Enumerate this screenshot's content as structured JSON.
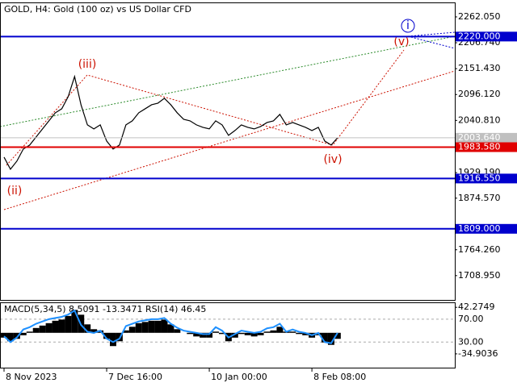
{
  "chart_data": [
    {
      "type": "line",
      "title": "GOLD, H4:  Gold (100 oz) vs US Dollar CFD",
      "x": [
        0,
        1,
        2,
        3,
        4,
        5,
        6,
        7,
        8,
        9,
        10,
        11,
        12,
        13,
        14,
        15,
        16,
        17,
        18,
        19,
        20,
        21,
        22,
        23,
        24,
        25,
        26,
        27,
        28,
        29,
        30,
        31,
        32,
        33,
        34,
        35,
        36,
        37,
        38,
        39,
        40,
        41,
        42,
        43,
        44,
        45,
        46,
        47,
        48,
        49,
        50,
        51,
        52
      ],
      "xlim": [
        -0.63,
        70.28
      ],
      "xticks": [
        {
          "value": 0,
          "label": "8 Nov 2023"
        },
        {
          "value": 16,
          "label": "7 Dec 16:00"
        },
        {
          "value": 32,
          "label": "10 Jan 00:00"
        },
        {
          "value": 48,
          "label": "8 Feb 08:00"
        }
      ],
      "series": [
        {
          "name": "GOLD",
          "color": "#000000",
          "values": [
            1962.2,
            1936.4,
            1953.7,
            1979.5,
            1988.1,
            2005.3,
            2022.6,
            2039.8,
            2057.0,
            2065.6,
            2091.5,
            2134.5,
            2074.2,
            2031.2,
            2022.6,
            2031.2,
            1996.7,
            1979.5,
            1988.1,
            2031.2,
            2039.8,
            2057.0,
            2065.6,
            2074.2,
            2077.7,
            2088.0,
            2074.2,
            2057.0,
            2043.2,
            2039.8,
            2031.2,
            2026.0,
            2022.6,
            2039.8,
            2031.2,
            2008.8,
            2019.1,
            2031.2,
            2026.0,
            2022.6,
            2027.7,
            2036.3,
            2039.8,
            2053.6,
            2031.2,
            2036.3,
            2031.2,
            2026.0,
            2019.1,
            2026.0,
            1996.7,
            1988.1,
            2003.6
          ]
        }
      ],
      "ylim": [
        1657,
        2293
      ],
      "yticks": [
        {
          "value": 2262.05,
          "label": "2262.050"
        },
        {
          "value": 2206.74,
          "label": "2206.740"
        },
        {
          "value": 2151.43,
          "label": "2151.430"
        },
        {
          "value": 2096.12,
          "label": "2096.120"
        },
        {
          "value": 2040.81,
          "label": "2040.810"
        },
        {
          "value": 1929.19,
          "label": "1929.190"
        },
        {
          "value": 1874.57,
          "label": "1874.570"
        },
        {
          "value": 1764.26,
          "label": "1764.260"
        },
        {
          "value": 1708.95,
          "label": "1708.950"
        }
      ],
      "levels": [
        {
          "value": 2220,
          "label": "2220.000",
          "color": "#0000cd"
        },
        {
          "value": 2003.64,
          "label": "2003.640",
          "color": "#c0c0c0"
        },
        {
          "value": 1983.58,
          "label": "1983.580",
          "color": "#e00000"
        },
        {
          "value": 1916.55,
          "label": "1916.550",
          "color": "#0000cd"
        },
        {
          "value": 1809,
          "label": "1809.000",
          "color": "#0000cd"
        }
      ],
      "annotations": [
        "(iii)",
        "(ii)",
        "(iv)",
        "(v)",
        "i"
      ]
    },
    {
      "type": "bar",
      "title": "MACD(5,34,5)  8.5091 -13.3471 RSI(14) 46.45",
      "ylim": [
        -59.1,
        49.2
      ],
      "yticks": [
        42.2749,
        -34.9036
      ],
      "y2lim": [
        -16,
        97.9
      ],
      "y2ticks": [
        {
          "value": 70,
          "label": "70.00"
        },
        {
          "value": 30,
          "label": "30.00"
        }
      ],
      "series": [
        {
          "name": "MACD",
          "color": "#000000",
          "values": [
            -8,
            -14,
            -10,
            -4,
            2,
            8,
            12,
            16,
            20,
            22,
            28,
            38,
            30,
            14,
            6,
            4,
            -10,
            -22,
            -14,
            4,
            10,
            16,
            18,
            20,
            20,
            22,
            14,
            6,
            0,
            -2,
            -6,
            -8,
            -8,
            2,
            -2,
            -14,
            -8,
            -2,
            -4,
            -6,
            -4,
            2,
            4,
            10,
            2,
            2,
            -2,
            -4,
            -8,
            -4,
            -16,
            -20,
            -10
          ]
        },
        {
          "name": "RSI",
          "color": "#1e90ff",
          "axis": "y2",
          "values": [
            40,
            30,
            38,
            52,
            56,
            62,
            66,
            70,
            72,
            74,
            78,
            85,
            60,
            48,
            46,
            50,
            36,
            30,
            36,
            58,
            62,
            66,
            68,
            70,
            70,
            72,
            62,
            55,
            50,
            48,
            46,
            44,
            44,
            56,
            50,
            38,
            44,
            50,
            48,
            46,
            48,
            54,
            56,
            62,
            48,
            52,
            48,
            46,
            42,
            46,
            30,
            28,
            46
          ]
        }
      ]
    }
  ]
}
